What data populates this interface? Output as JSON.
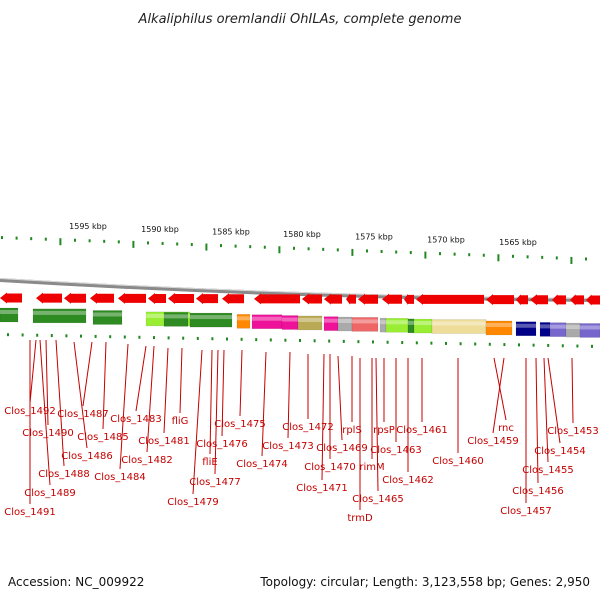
{
  "title": "Alkaliphilus oremlandii OhILAs, complete genome",
  "footer": {
    "accession": "Accession: NC_009922",
    "summary": "Topology: circular; Length: 3,123,558 bp; Genes: 2,950"
  },
  "scale_labels": [
    "1595 kbp",
    "1590 kbp",
    "1585 kbp",
    "1580 kbp",
    "1575 kbp",
    "1570 kbp",
    "1565 kbp"
  ],
  "gene_labels": [
    "Clos_1492",
    "Clos_1491",
    "Clos_1490",
    "Clos_1489",
    "Clos_1488",
    "Clos_1487",
    "Clos_1486",
    "Clos_1485",
    "Clos_1484",
    "Clos_1483",
    "Clos_1482",
    "fliG",
    "Clos_1481",
    "Clos_1479",
    "fliE",
    "Clos_1477",
    "Clos_1476",
    "Clos_1475",
    "Clos_1474",
    "Clos_1473",
    "Clos_1472",
    "Clos_1471",
    "Clos_1470",
    "Clos_1469",
    "rplS",
    "trmD",
    "rimM",
    "Clos_1465",
    "rpsP",
    "Clos_1463",
    "Clos_1462",
    "Clos_1461",
    "Clos_1460",
    "rnc",
    "Clos_1459",
    "Clos_1457",
    "Clos_1456",
    "Clos_1455",
    "Clos_1454",
    "Clos_1453"
  ],
  "colors": {
    "gene_arrow": "#ee0000",
    "label": "#c40000",
    "backbone": "#888888",
    "tick": "#228822",
    "cog_green": "#2e8b22",
    "cog_lime": "#99ee33",
    "cog_orange": "#ff8800",
    "cog_magenta": "#ee1199",
    "cog_olive": "#bbaa55",
    "cog_grey": "#aaaaaa",
    "cog_salmon": "#ee6666",
    "cog_khaki": "#eedd99",
    "cog_navy": "#000088",
    "cog_slate": "#7766cc"
  }
}
